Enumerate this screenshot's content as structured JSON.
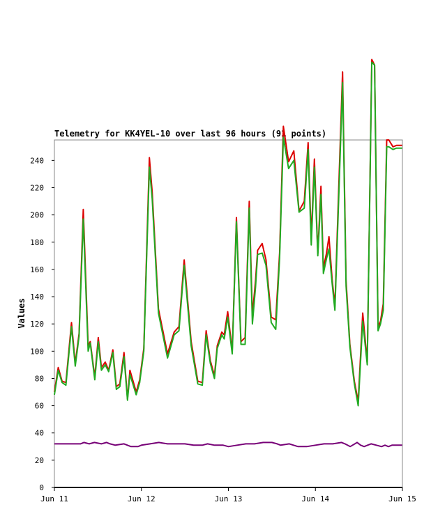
{
  "chart_data": {
    "type": "line",
    "title": "Telemetry for KK4YEL-10 over last 96 hours (91 points)",
    "xlabel": "",
    "ylabel": "Values",
    "ylim": [
      0,
      255
    ],
    "xlim": [
      0,
      4
    ],
    "yticks": [
      0,
      20,
      40,
      60,
      80,
      100,
      120,
      140,
      160,
      180,
      200,
      220,
      240
    ],
    "xticks": [
      {
        "pos": 0,
        "label": "Jun 11"
      },
      {
        "pos": 1,
        "label": "Jun 12"
      },
      {
        "pos": 2,
        "label": "Jun 13"
      },
      {
        "pos": 3,
        "label": "Jun 14"
      },
      {
        "pos": 4,
        "label": "Jun 15"
      }
    ],
    "grid": false,
    "legend": "none",
    "series": [
      {
        "color": "#dd0000",
        "x": [
          0.0,
          0.044,
          0.088,
          0.132,
          0.196,
          0.24,
          0.284,
          0.332,
          0.388,
          0.412,
          0.464,
          0.504,
          0.54,
          0.584,
          0.624,
          0.672,
          0.712,
          0.752,
          0.8,
          0.84,
          0.868,
          0.94,
          0.98,
          1.028,
          1.092,
          1.124,
          1.196,
          1.3,
          1.376,
          1.432,
          1.492,
          1.572,
          1.648,
          1.7,
          1.744,
          1.792,
          1.84,
          1.872,
          1.924,
          1.952,
          1.992,
          2.044,
          2.092,
          2.144,
          2.192,
          2.24,
          2.276,
          2.312,
          2.336,
          2.388,
          2.432,
          2.492,
          2.544,
          2.588,
          2.632,
          2.692,
          2.752,
          2.812,
          2.872,
          2.916,
          2.952,
          2.988,
          3.028,
          3.064,
          3.092,
          3.128,
          3.156,
          3.192,
          3.224,
          3.264,
          3.312,
          3.352,
          3.396,
          3.448,
          3.492,
          3.544,
          3.596,
          3.648,
          3.68,
          3.72,
          3.748,
          3.78,
          3.82,
          3.844,
          3.892,
          3.932,
          3.952,
          3.988,
          3.996
        ],
        "y": [
          70,
          88,
          78,
          77,
          121,
          91,
          113,
          204,
          104,
          107,
          81,
          110,
          88,
          92,
          86,
          101,
          74,
          76,
          99,
          65,
          86,
          70,
          79,
          102,
          242,
          217,
          131,
          98,
          114,
          118,
          167,
          107,
          78,
          77,
          115,
          93,
          82,
          104,
          114,
          112,
          129,
          100,
          198,
          107,
          110,
          210,
          126,
          152,
          174,
          179,
          167,
          125,
          123,
          172,
          265,
          239,
          247,
          203,
          210,
          253,
          183,
          241,
          172,
          221,
          161,
          172,
          184,
          153,
          133,
          212,
          305,
          152,
          105,
          78,
          63,
          128,
          92,
          314,
          310,
          118,
          122,
          135,
          255,
          255,
          250,
          251,
          251,
          251,
          251
        ],
        "xsel": [
          0.0,
          0.044,
          0.088,
          0.132,
          0.196,
          0.24,
          0.284,
          0.332,
          0.388,
          0.412,
          0.464,
          0.504,
          0.54,
          0.584,
          0.624,
          0.672,
          0.712,
          0.752,
          0.8,
          0.84,
          0.868,
          0.94,
          0.98,
          1.028,
          1.092,
          1.124,
          1.196,
          1.3,
          1.376,
          1.432,
          1.492,
          1.572,
          1.648,
          1.7,
          1.744,
          1.792,
          1.84,
          1.872,
          1.924,
          1.952,
          1.992,
          2.044,
          2.092,
          2.144,
          2.192,
          2.24,
          2.276,
          2.312,
          2.336,
          2.388,
          2.432,
          2.492,
          2.544,
          2.588,
          2.632,
          2.692,
          2.752,
          2.812,
          2.872,
          2.916,
          2.952,
          2.988,
          3.028,
          3.064,
          3.092,
          3.128,
          3.156,
          3.192,
          3.224,
          3.264,
          3.312,
          3.352,
          3.396,
          3.448,
          3.492,
          3.544,
          3.596,
          3.648,
          3.68,
          3.72,
          3.748,
          3.78,
          3.82,
          3.844,
          3.892,
          3.932,
          3.952,
          3.988,
          3.996
        ]
      },
      {
        "color": "#22aa22",
        "x": [
          0.0,
          0.044,
          0.088,
          0.132,
          0.196,
          0.24,
          0.284,
          0.332,
          0.388,
          0.412,
          0.464,
          0.504,
          0.54,
          0.584,
          0.624,
          0.672,
          0.712,
          0.752,
          0.8,
          0.84,
          0.868,
          0.94,
          0.98,
          1.028,
          1.092,
          1.124,
          1.196,
          1.3,
          1.376,
          1.432,
          1.492,
          1.572,
          1.648,
          1.7,
          1.744,
          1.792,
          1.84,
          1.872,
          1.924,
          1.952,
          1.992,
          2.044,
          2.092,
          2.144,
          2.192,
          2.24,
          2.276,
          2.312,
          2.336,
          2.388,
          2.432,
          2.492,
          2.544,
          2.588,
          2.632,
          2.692,
          2.752,
          2.812,
          2.872,
          2.916,
          2.952,
          2.988,
          3.028,
          3.064,
          3.092,
          3.128,
          3.156,
          3.192,
          3.224,
          3.264,
          3.312,
          3.352,
          3.396,
          3.448,
          3.492,
          3.544,
          3.596,
          3.648,
          3.68,
          3.72,
          3.748,
          3.78,
          3.82,
          3.844,
          3.892,
          3.932,
          3.952,
          3.988,
          3.996
        ],
        "y": [
          68,
          86,
          77,
          75,
          118,
          89,
          111,
          197,
          100,
          106,
          79,
          107,
          86,
          90,
          85,
          99,
          72,
          74,
          96,
          64,
          83,
          68,
          77,
          100,
          235,
          212,
          128,
          95,
          112,
          115,
          163,
          104,
          76,
          75,
          112,
          91,
          80,
          102,
          112,
          109,
          125,
          98,
          195,
          105,
          105,
          205,
          120,
          147,
          171,
          172,
          163,
          121,
          116,
          168,
          257,
          234,
          240,
          202,
          205,
          248,
          178,
          235,
          170,
          215,
          157,
          168,
          175,
          150,
          130,
          205,
          297,
          148,
          103,
          76,
          60,
          122,
          90,
          312,
          310,
          115,
          120,
          130,
          250,
          250,
          248,
          249,
          249,
          249,
          249
        ]
      },
      {
        "color": "#770077",
        "x": [
          0.0,
          0.1,
          0.2,
          0.3,
          0.34,
          0.4,
          0.46,
          0.54,
          0.6,
          0.64,
          0.7,
          0.8,
          0.88,
          0.96,
          1.0,
          1.1,
          1.2,
          1.3,
          1.4,
          1.5,
          1.6,
          1.7,
          1.76,
          1.84,
          1.94,
          2.0,
          2.1,
          2.2,
          2.3,
          2.4,
          2.5,
          2.56,
          2.6,
          2.7,
          2.8,
          2.9,
          3.0,
          3.1,
          3.2,
          3.3,
          3.34,
          3.4,
          3.48,
          3.52,
          3.56,
          3.6,
          3.64,
          3.7,
          3.76,
          3.8,
          3.84,
          3.88,
          3.94,
          3.996
        ],
        "y": [
          32,
          32,
          32,
          32,
          33,
          32,
          33,
          32,
          33,
          32,
          31,
          32,
          30,
          30,
          31,
          32,
          33,
          32,
          32,
          32,
          31,
          31,
          32,
          31,
          31,
          30,
          31,
          32,
          32,
          33,
          33,
          32,
          31,
          32,
          30,
          30,
          31,
          32,
          32,
          33,
          32,
          30,
          33,
          31,
          30,
          31,
          32,
          31,
          30,
          31,
          30,
          31,
          31,
          31
        ]
      },
      {
        "color": "#000000",
        "x": [
          0.0,
          3.996
        ],
        "y": [
          0,
          0
        ]
      }
    ]
  }
}
